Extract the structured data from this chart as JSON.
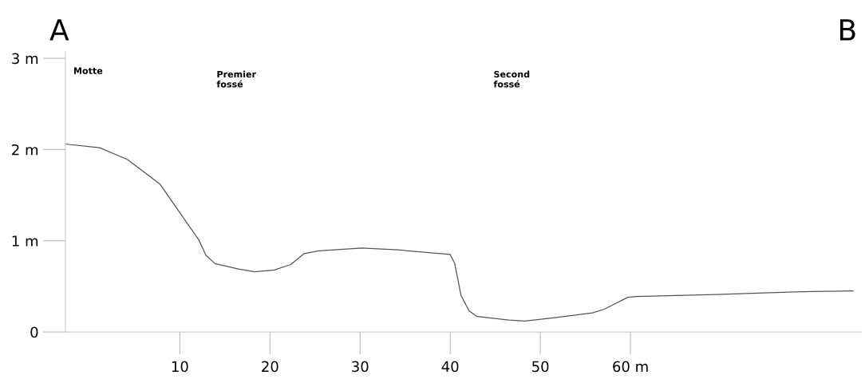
{
  "chart_data": {
    "type": "line",
    "x": [
      -2.7,
      1.1,
      4.2,
      7.8,
      12.1,
      12.9,
      13.9,
      16.5,
      18.3,
      20.5,
      22.3,
      23.8,
      25.4,
      30.2,
      34.2,
      40.0,
      40.5,
      41.2,
      42.1,
      43.0,
      46.5,
      48.3,
      51.8,
      55.8,
      57.1,
      59.7,
      60.6,
      69.4,
      78.2,
      84.7
    ],
    "series": [
      {
        "color": "#555555",
        "values": [
          2.06,
          2.02,
          1.89,
          1.62,
          1.01,
          0.84,
          0.75,
          0.69,
          0.66,
          0.68,
          0.74,
          0.86,
          0.89,
          0.92,
          0.9,
          0.85,
          0.75,
          0.4,
          0.23,
          0.17,
          0.13,
          0.12,
          0.16,
          0.21,
          0.25,
          0.38,
          0.39,
          0.41,
          0.44,
          0.45
        ]
      }
    ],
    "xlim": [
      -2.7,
      85.6
    ],
    "xticks": [
      10,
      20,
      30,
      40,
      50,
      {
        "value": 60,
        "label": "60 m"
      }
    ],
    "ylim": [
      0,
      3.07
    ],
    "yticks": [
      {
        "value": 0,
        "label": "0"
      },
      {
        "value": 1,
        "label": "1 m"
      },
      {
        "value": 2,
        "label": "2 m"
      },
      {
        "value": 3,
        "label": "3 m"
      }
    ],
    "annotations": [
      "A",
      "B",
      "Motte",
      "Premier\nfossé",
      "Second\nfossé"
    ],
    "grid": false,
    "marker": "none",
    "line_style": "solid"
  }
}
